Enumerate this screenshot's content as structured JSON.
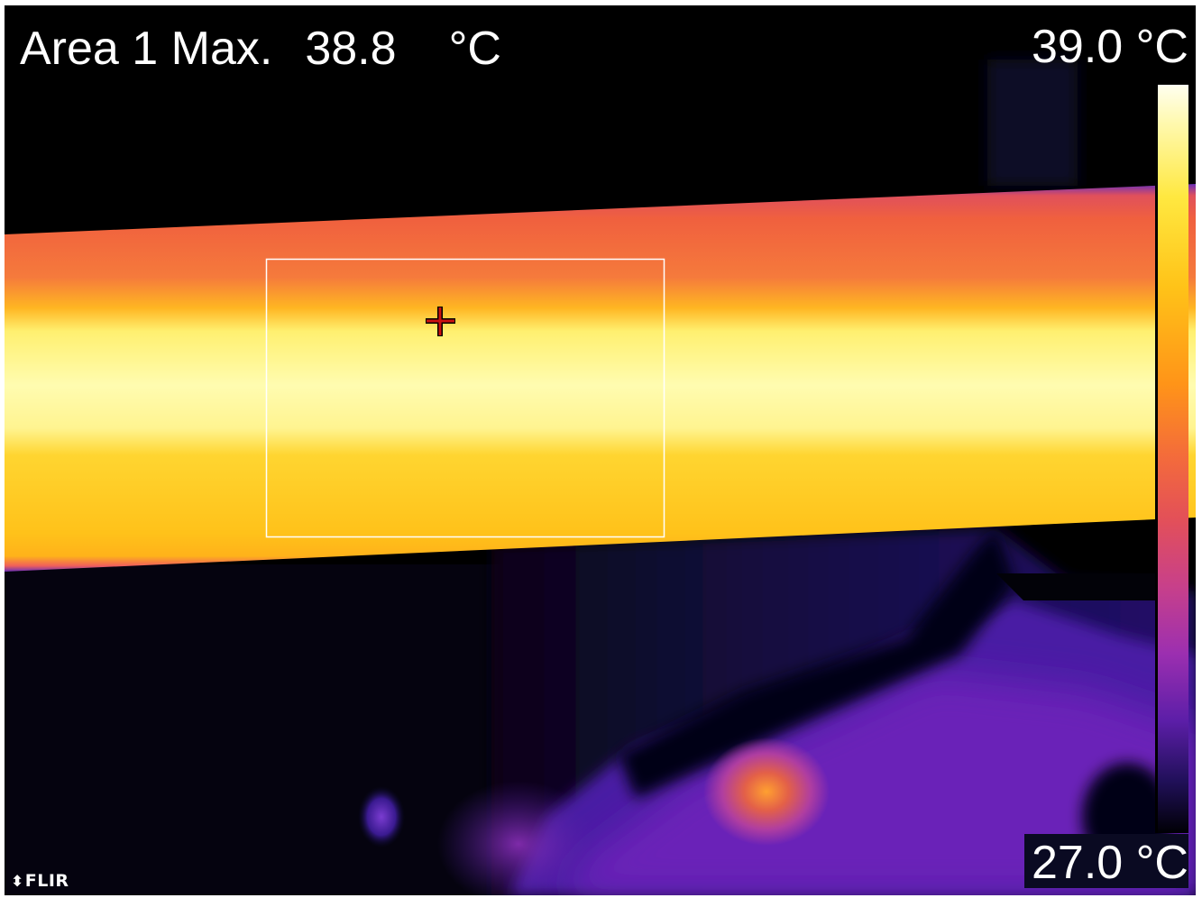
{
  "measurement": {
    "label": "Area 1 Max.",
    "value": "38.8",
    "unit": "°C"
  },
  "scale": {
    "max_label": "39.0 °C",
    "min_label": "27.0 °C",
    "palette": "iron",
    "colors": [
      "#fffff0",
      "#ffe840",
      "#ff9418",
      "#e35058",
      "#9c2fb0",
      "#21105a",
      "#000005"
    ]
  },
  "brand": {
    "logo_text": "FLIR",
    "logo_mark_icon": "flir-diamond-icon"
  },
  "overlays": {
    "measurement_box": "area-1-box",
    "spot": "spotmeter-crosshair-icon"
  }
}
